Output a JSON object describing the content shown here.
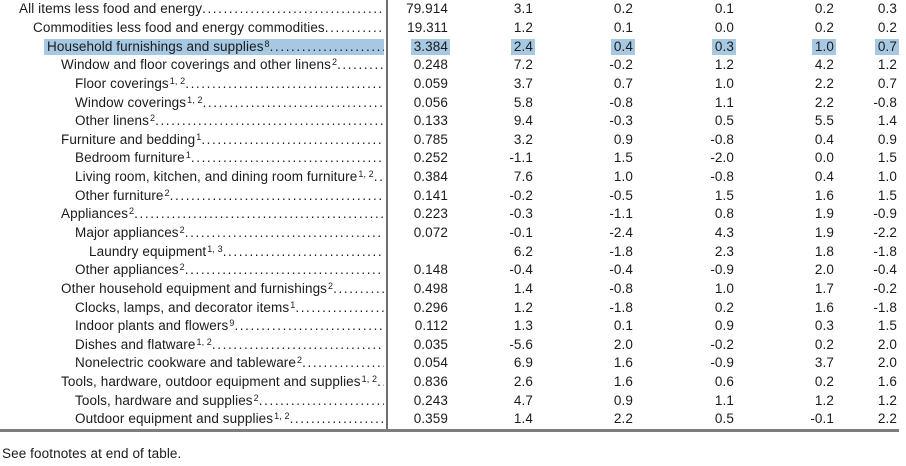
{
  "colors": {
    "highlight": "#a6c8e2",
    "rule": "#6e6e6e",
    "text": "#1b1b1b",
    "background": "#ffffff"
  },
  "footer": {
    "note": "See footnotes at end of table."
  },
  "table": {
    "rows": [
      {
        "label": "All items less food and energy",
        "sup": "",
        "indent": 0,
        "highlighted": false,
        "values": [
          "79.914",
          "3.1",
          "0.2",
          "0.1",
          "0.2",
          "0.3"
        ]
      },
      {
        "label": "Commodities less food and energy commodities",
        "sup": "",
        "indent": 1,
        "highlighted": false,
        "values": [
          "19.311",
          "1.2",
          "0.1",
          "0.0",
          "0.2",
          "0.2"
        ]
      },
      {
        "label": "Household furnishings and supplies",
        "sup": "8",
        "indent": 2,
        "highlighted": true,
        "values": [
          "3.384",
          "2.4",
          "0.4",
          "0.3",
          "1.0",
          "0.7"
        ]
      },
      {
        "label": "Window and floor coverings and other linens",
        "sup": "2",
        "indent": 3,
        "highlighted": false,
        "values": [
          "0.248",
          "7.2",
          "-0.2",
          "1.2",
          "4.2",
          "1.2"
        ]
      },
      {
        "label": "Floor coverings",
        "sup": "1, 2",
        "indent": 4,
        "highlighted": false,
        "values": [
          "0.059",
          "3.7",
          "0.7",
          "1.0",
          "2.2",
          "0.7"
        ]
      },
      {
        "label": "Window coverings",
        "sup": "1, 2",
        "indent": 4,
        "highlighted": false,
        "values": [
          "0.056",
          "5.8",
          "-0.8",
          "1.1",
          "2.2",
          "-0.8"
        ]
      },
      {
        "label": "Other linens",
        "sup": "2",
        "indent": 4,
        "highlighted": false,
        "values": [
          "0.133",
          "9.4",
          "-0.3",
          "0.5",
          "5.5",
          "1.4"
        ]
      },
      {
        "label": "Furniture and bedding",
        "sup": "1",
        "indent": 3,
        "highlighted": false,
        "values": [
          "0.785",
          "3.2",
          "0.9",
          "-0.8",
          "0.4",
          "0.9"
        ]
      },
      {
        "label": "Bedroom furniture",
        "sup": "1",
        "indent": 4,
        "highlighted": false,
        "values": [
          "0.252",
          "-1.1",
          "1.5",
          "-2.0",
          "0.0",
          "1.5"
        ]
      },
      {
        "label": "Living room, kitchen, and dining room furniture",
        "sup": "1, 2",
        "indent": 4,
        "highlighted": false,
        "values": [
          "0.384",
          "7.6",
          "1.0",
          "-0.8",
          "0.4",
          "1.0"
        ]
      },
      {
        "label": "Other furniture",
        "sup": "2",
        "indent": 4,
        "highlighted": false,
        "values": [
          "0.141",
          "-0.2",
          "-0.5",
          "1.5",
          "1.6",
          "1.5"
        ]
      },
      {
        "label": "Appliances",
        "sup": "2",
        "indent": 3,
        "highlighted": false,
        "values": [
          "0.223",
          "-0.3",
          "-1.1",
          "0.8",
          "1.9",
          "-0.9"
        ]
      },
      {
        "label": "Major appliances",
        "sup": "2",
        "indent": 4,
        "highlighted": false,
        "values": [
          "0.072",
          "-0.1",
          "-2.4",
          "4.3",
          "1.9",
          "-2.2"
        ]
      },
      {
        "label": "Laundry equipment",
        "sup": "1, 3",
        "indent": 5,
        "highlighted": false,
        "values": [
          "",
          "6.2",
          "-1.8",
          "2.3",
          "1.8",
          "-1.8"
        ]
      },
      {
        "label": "Other appliances",
        "sup": "2",
        "indent": 4,
        "highlighted": false,
        "values": [
          "0.148",
          "-0.4",
          "-0.4",
          "-0.9",
          "2.0",
          "-0.4"
        ]
      },
      {
        "label": "Other household equipment and furnishings",
        "sup": "2",
        "indent": 3,
        "highlighted": false,
        "values": [
          "0.498",
          "1.4",
          "-0.8",
          "1.0",
          "1.7",
          "-0.2"
        ]
      },
      {
        "label": "Clocks, lamps, and decorator items",
        "sup": "1",
        "indent": 4,
        "highlighted": false,
        "values": [
          "0.296",
          "1.2",
          "-1.8",
          "0.2",
          "1.6",
          "-1.8"
        ]
      },
      {
        "label": "Indoor plants and flowers",
        "sup": "9",
        "indent": 4,
        "highlighted": false,
        "values": [
          "0.112",
          "1.3",
          "0.1",
          "0.9",
          "0.3",
          "1.5"
        ]
      },
      {
        "label": "Dishes and flatware",
        "sup": "1, 2",
        "indent": 4,
        "highlighted": false,
        "values": [
          "0.035",
          "-5.6",
          "2.0",
          "-0.2",
          "0.2",
          "2.0"
        ]
      },
      {
        "label": "Nonelectric cookware and tableware",
        "sup": "2",
        "indent": 4,
        "highlighted": false,
        "values": [
          "0.054",
          "6.9",
          "1.6",
          "-0.9",
          "3.7",
          "2.0"
        ]
      },
      {
        "label": "Tools, hardware, outdoor equipment and supplies",
        "sup": "1, 2",
        "indent": 3,
        "highlighted": false,
        "values": [
          "0.836",
          "2.6",
          "1.6",
          "0.6",
          "0.2",
          "1.6"
        ]
      },
      {
        "label": "Tools, hardware and supplies",
        "sup": "2",
        "indent": 4,
        "highlighted": false,
        "values": [
          "0.243",
          "4.7",
          "0.9",
          "1.1",
          "1.2",
          "1.2"
        ]
      },
      {
        "label": "Outdoor equipment and supplies",
        "sup": "1, 2",
        "indent": 4,
        "highlighted": false,
        "values": [
          "0.359",
          "1.4",
          "2.2",
          "0.5",
          "-0.1",
          "2.2"
        ]
      }
    ]
  }
}
